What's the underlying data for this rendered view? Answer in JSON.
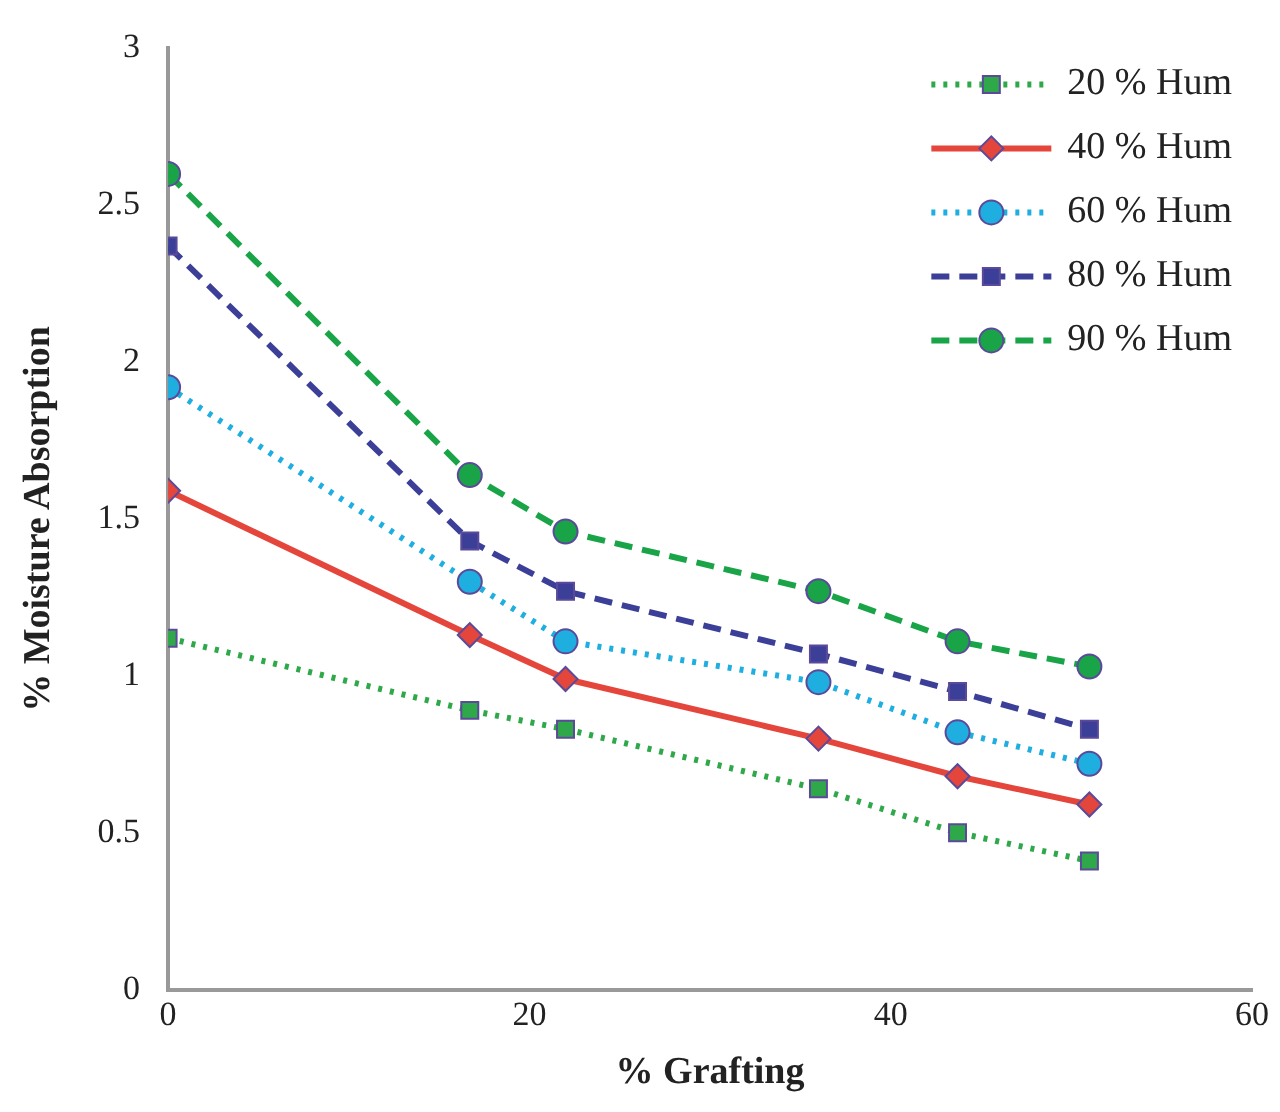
{
  "chart_data": {
    "type": "line",
    "xlabel": "% Grafting",
    "ylabel": "% Moisture Absorption",
    "x": [
      0,
      16.7,
      22,
      36,
      43.7,
      51
    ],
    "series": [
      {
        "name": "20 % Hum",
        "color": "#2fa84a",
        "marker": "square",
        "line_style": "dotted",
        "values": [
          1.12,
          0.89,
          0.83,
          0.64,
          0.5,
          0.41
        ]
      },
      {
        "name": "40 % Hum",
        "color": "#e5463c",
        "marker": "diamond",
        "line_style": "solid",
        "values": [
          1.59,
          1.13,
          0.99,
          0.8,
          0.68,
          0.59
        ]
      },
      {
        "name": "60 % Hum",
        "color": "#1eaee0",
        "marker": "circle",
        "line_style": "dotted",
        "values": [
          1.92,
          1.3,
          1.11,
          0.98,
          0.82,
          0.72
        ]
      },
      {
        "name": "80 % Hum",
        "color": "#3c3f98",
        "marker": "square",
        "line_style": "dashed",
        "values": [
          2.37,
          1.43,
          1.27,
          1.07,
          0.95,
          0.83
        ]
      },
      {
        "name": "90 % Hum",
        "color": "#1aa448",
        "marker": "circle",
        "line_style": "dashed",
        "values": [
          2.6,
          1.64,
          1.46,
          1.27,
          1.11,
          1.03
        ]
      }
    ],
    "xlim": [
      0,
      60
    ],
    "xticks": [
      0,
      20,
      40,
      60
    ],
    "ylim": [
      0,
      3
    ],
    "yticks": [
      0,
      0.5,
      1,
      1.5,
      2,
      2.5,
      3
    ],
    "grid": false,
    "legend": "top right"
  }
}
